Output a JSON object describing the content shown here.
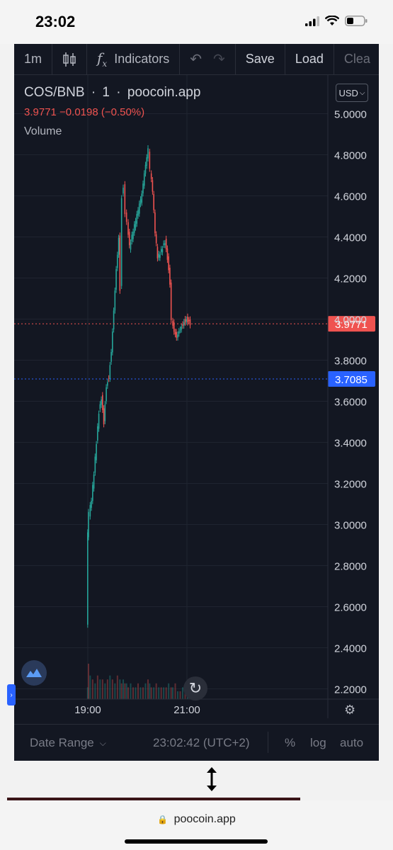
{
  "status": {
    "time": "23:02"
  },
  "toolbar": {
    "interval": "1m",
    "indicators_label": "Indicators",
    "save_label": "Save",
    "load_label": "Load",
    "clear_label": "Clea"
  },
  "legend": {
    "symbol": "COS/BNB",
    "interval": "1",
    "source": "poocoin.app",
    "ohlc": "3.9771  −0.0198 (−0.50%)",
    "volume_label": "Volume"
  },
  "currency_button": "USD",
  "price_labels": {
    "current": "3.9771",
    "reference": "3.7085"
  },
  "bottom": {
    "date_range": "Date Range",
    "clock": "23:02:42 (UTC+2)",
    "percent": "%",
    "log": "log",
    "auto": "auto"
  },
  "url": "poocoin.app",
  "colors": {
    "up": "#26a69a",
    "down": "#ef5350",
    "current_line": "#ef5350",
    "reference_line": "#2962ff"
  },
  "chart_data": {
    "type": "candlestick",
    "symbol": "COS/BNB",
    "y_ticks": [
      "5.0000",
      "4.8000",
      "4.6000",
      "4.4000",
      "4.2000",
      "4.0000",
      "3.8000",
      "3.6000",
      "3.4000",
      "3.2000",
      "3.0000",
      "2.8000",
      "2.6000",
      "2.4000",
      "2.2000"
    ],
    "x_ticks": [
      "19:00",
      "21:00"
    ],
    "ylim": [
      2.15,
      5.05
    ],
    "current_price": 3.9771,
    "reference_price": 3.7085,
    "price_path": [
      [
        "18:59",
        2.52
      ],
      [
        "19:00",
        2.95
      ],
      [
        "19:02",
        3.05
      ],
      [
        "19:05",
        3.12
      ],
      [
        "19:08",
        3.25
      ],
      [
        "19:11",
        3.4
      ],
      [
        "19:14",
        3.55
      ],
      [
        "19:17",
        3.62
      ],
      [
        "19:20",
        3.5
      ],
      [
        "19:23",
        3.68
      ],
      [
        "19:26",
        3.72
      ],
      [
        "19:29",
        3.85
      ],
      [
        "19:32",
        4.05
      ],
      [
        "19:35",
        4.25
      ],
      [
        "19:38",
        4.4
      ],
      [
        "19:40",
        4.15
      ],
      [
        "19:42",
        4.6
      ],
      [
        "19:44",
        4.65
      ],
      [
        "19:46",
        4.52
      ],
      [
        "19:48",
        4.48
      ],
      [
        "19:51",
        4.35
      ],
      [
        "19:54",
        4.4
      ],
      [
        "19:57",
        4.45
      ],
      [
        "20:00",
        4.5
      ],
      [
        "20:03",
        4.55
      ],
      [
        "20:06",
        4.6
      ],
      [
        "20:09",
        4.7
      ],
      [
        "20:12",
        4.78
      ],
      [
        "20:14",
        4.82
      ],
      [
        "20:16",
        4.72
      ],
      [
        "20:19",
        4.62
      ],
      [
        "20:22",
        4.42
      ],
      [
        "20:25",
        4.3
      ],
      [
        "20:28",
        4.32
      ],
      [
        "20:31",
        4.35
      ],
      [
        "20:34",
        4.38
      ],
      [
        "20:37",
        4.3
      ],
      [
        "20:40",
        4.18
      ],
      [
        "20:42",
        4.0
      ],
      [
        "20:45",
        3.95
      ],
      [
        "20:48",
        3.92
      ],
      [
        "20:51",
        3.95
      ],
      [
        "20:54",
        3.97
      ],
      [
        "20:57",
        3.99
      ],
      [
        "21:00",
        4.0
      ],
      [
        "21:03",
        3.99
      ],
      [
        "21:05",
        3.98
      ]
    ],
    "volume": [
      3,
      9,
      6,
      5,
      4,
      6,
      5,
      5,
      4,
      5,
      6,
      5,
      4,
      6,
      5,
      4,
      5,
      4,
      4,
      3,
      4,
      3,
      3,
      4,
      3,
      3,
      4,
      5,
      4,
      3,
      3,
      4,
      3,
      3,
      3,
      3,
      4,
      3,
      3,
      4,
      2,
      2,
      3,
      2,
      2,
      2,
      2
    ]
  }
}
